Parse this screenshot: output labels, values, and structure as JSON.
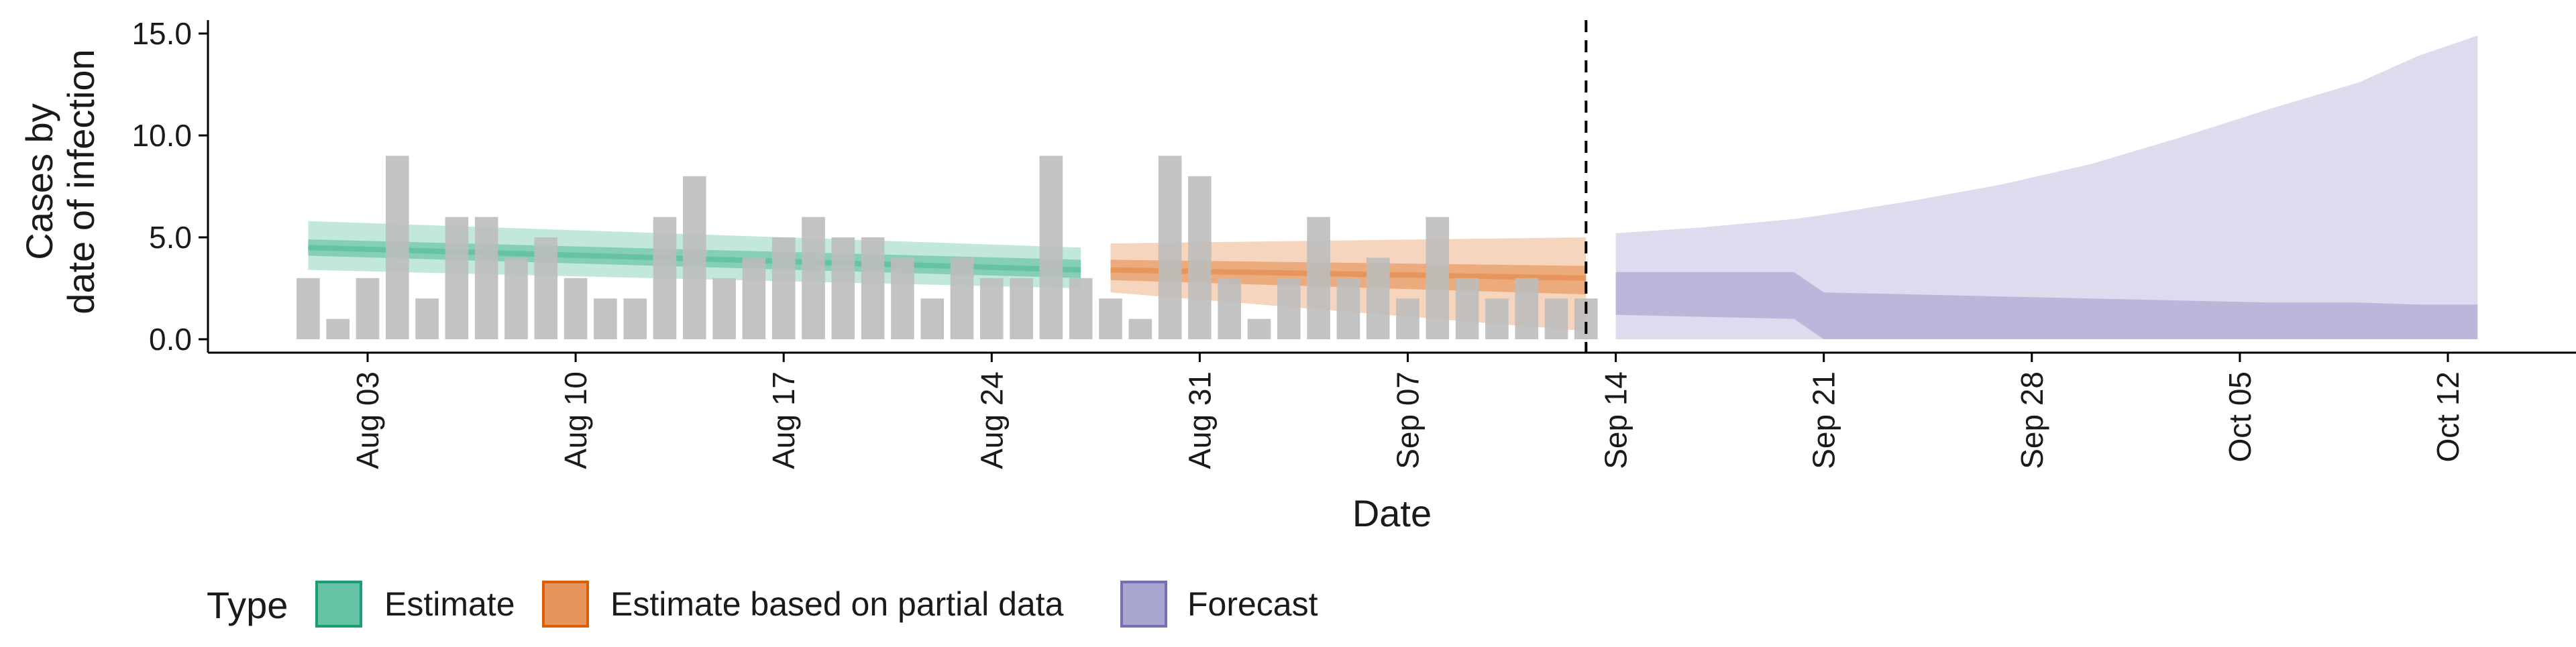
{
  "chart_data": {
    "type": "bar",
    "xlabel": "Date",
    "ylabel_lines": [
      "Cases by",
      "date of infection"
    ],
    "ylim": [
      0,
      15.5
    ],
    "y_ticks": [
      0,
      5,
      10,
      15
    ],
    "y_tick_labels": [
      "0.0",
      "5.0",
      "10.0",
      "15.0"
    ],
    "x_range": [
      "2020-07-27",
      "2020-10-17"
    ],
    "x_ticks": [
      "2020-08-03",
      "2020-08-10",
      "2020-08-17",
      "2020-08-24",
      "2020-08-31",
      "2020-09-07",
      "2020-09-14",
      "2020-09-21",
      "2020-09-28",
      "2020-10-05",
      "2020-10-12"
    ],
    "x_tick_labels": [
      "Aug 03",
      "Aug 10",
      "Aug 17",
      "Aug 24",
      "Aug 31",
      "Sep 07",
      "Sep 14",
      "Sep 21",
      "Sep 28",
      "Oct 05",
      "Oct 12"
    ],
    "forecast_start": "2020-09-13",
    "grid": false,
    "legend_position": "bottom-left",
    "legend": {
      "title": "Type",
      "items": [
        {
          "label": "Estimate",
          "fill": "#66c2a5",
          "stroke": "#1b9e77"
        },
        {
          "label": "Estimate based on partial data",
          "fill": "#e7955a",
          "stroke": "#d95f02"
        },
        {
          "label": "Forecast",
          "fill": "#a9a5d1",
          "stroke": "#7570b3"
        }
      ]
    },
    "bars": {
      "color": "#bdbdbd",
      "dates": [
        "2020-08-01",
        "2020-08-02",
        "2020-08-03",
        "2020-08-04",
        "2020-08-05",
        "2020-08-06",
        "2020-08-07",
        "2020-08-08",
        "2020-08-09",
        "2020-08-10",
        "2020-08-11",
        "2020-08-12",
        "2020-08-13",
        "2020-08-14",
        "2020-08-15",
        "2020-08-16",
        "2020-08-17",
        "2020-08-18",
        "2020-08-19",
        "2020-08-20",
        "2020-08-21",
        "2020-08-22",
        "2020-08-23",
        "2020-08-24",
        "2020-08-25",
        "2020-08-26",
        "2020-08-27",
        "2020-08-28",
        "2020-08-29",
        "2020-08-30",
        "2020-08-31",
        "2020-09-01",
        "2020-09-02",
        "2020-09-03",
        "2020-09-04",
        "2020-09-05",
        "2020-09-06",
        "2020-09-07",
        "2020-09-08",
        "2020-09-09",
        "2020-09-10",
        "2020-09-11",
        "2020-09-12",
        "2020-09-13"
      ],
      "values": [
        3,
        1,
        3,
        9,
        2,
        6,
        6,
        4,
        5,
        3,
        2,
        2,
        6,
        8,
        3,
        4,
        5,
        6,
        5,
        5,
        4,
        2,
        4,
        3,
        3,
        9,
        3,
        2,
        1,
        9,
        8,
        3,
        1,
        3,
        6,
        3,
        4,
        2,
        6,
        3,
        2,
        3,
        2,
        2
      ]
    },
    "series": [
      {
        "name": "Estimate",
        "fill": "#66c2a5",
        "dates": [
          "2020-08-01",
          "2020-08-27"
        ],
        "median": [
          4.5,
          3.4
        ],
        "inner": [
          [
            4.1,
            4.9
          ],
          [
            3.0,
            3.9
          ]
        ],
        "outer": [
          [
            3.4,
            5.8
          ],
          [
            2.5,
            4.5
          ]
        ]
      },
      {
        "name": "Estimate based on partial data",
        "fill": "#e7955a",
        "dates": [
          "2020-08-28",
          "2020-09-13"
        ],
        "median": [
          3.4,
          3.0
        ],
        "inner": [
          [
            2.9,
            3.9
          ],
          [
            2.2,
            3.6
          ]
        ],
        "outer": [
          [
            2.3,
            4.7
          ],
          [
            0.4,
            5.0
          ]
        ]
      },
      {
        "name": "Forecast",
        "fill": "#a9a5d1",
        "dates": [
          "2020-09-14",
          "2020-09-17",
          "2020-09-20",
          "2020-09-21",
          "2020-09-24",
          "2020-09-27",
          "2020-09-30",
          "2020-10-03",
          "2020-10-06",
          "2020-10-09",
          "2020-10-11",
          "2020-10-13"
        ],
        "inner_low": [
          1.2,
          1.1,
          1.0,
          0.0,
          0.0,
          0.0,
          0.0,
          0.0,
          0.0,
          0.0,
          0.0,
          0.0
        ],
        "inner_high": [
          3.3,
          3.3,
          3.3,
          2.3,
          2.2,
          2.1,
          2.0,
          1.9,
          1.8,
          1.8,
          1.7,
          1.7
        ],
        "outer_low": [
          0,
          0,
          0,
          0,
          0,
          0,
          0,
          0,
          0,
          0,
          0,
          0
        ],
        "outer_high": [
          5.2,
          5.5,
          5.9,
          6.1,
          6.8,
          7.6,
          8.6,
          9.9,
          11.3,
          12.6,
          13.9,
          14.9
        ]
      }
    ]
  }
}
